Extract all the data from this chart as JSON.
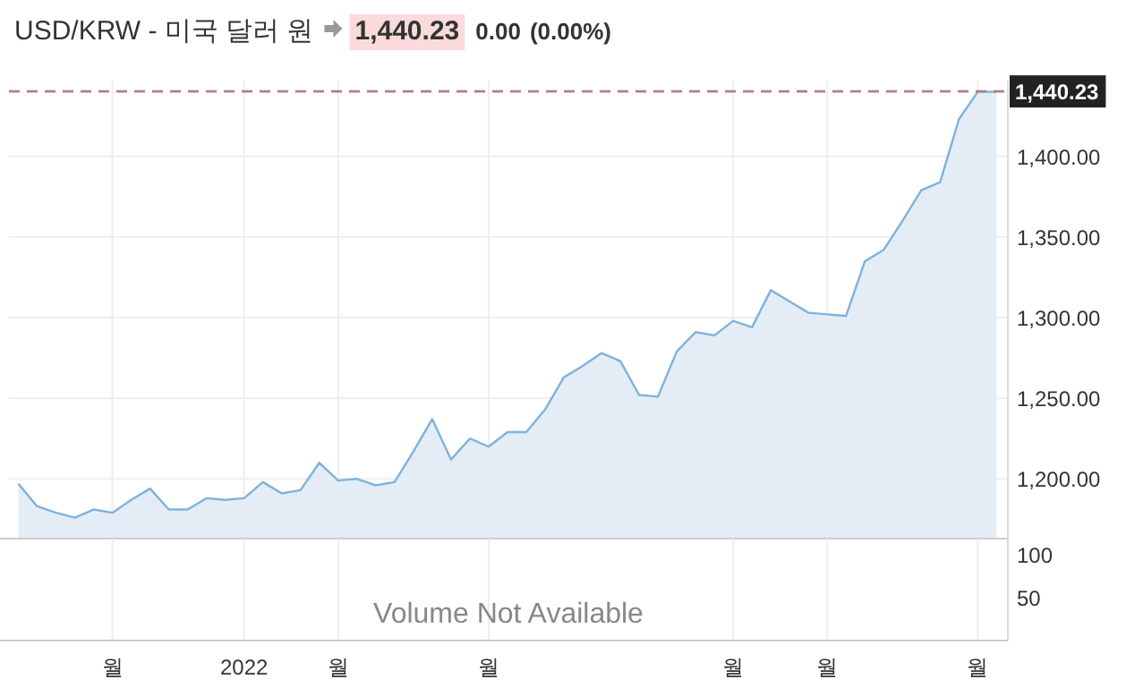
{
  "chart_data": [
    {
      "type": "area",
      "title": "USD/KRW - 미국 달러 원",
      "annotations": [
        "1,440.23",
        "0.00",
        "(0.00%)"
      ],
      "categories": [
        null,
        null,
        null,
        null,
        null,
        null,
        null,
        null,
        null,
        null,
        null,
        null,
        null,
        null,
        null,
        null,
        null,
        null,
        null,
        null,
        null,
        null,
        null,
        null,
        null,
        null,
        null,
        null,
        null,
        null,
        null,
        null,
        null,
        null,
        null,
        null,
        null,
        null,
        null,
        null,
        null,
        null,
        null,
        null,
        null,
        null,
        null,
        null,
        null,
        null,
        null,
        null,
        null
      ],
      "series": [
        {
          "color": "#7fb2dc",
          "values": [
            1197,
            1183,
            1179,
            1176,
            1181,
            1179,
            1187,
            1194,
            1181,
            1181,
            1188,
            1187,
            1188,
            1198,
            1191,
            1193,
            1210,
            1199,
            1200,
            1196,
            1198,
            1217,
            1237,
            1212,
            1225,
            1220,
            1229,
            1229,
            1243,
            1263,
            1270,
            1278,
            1273,
            1252,
            1251,
            1279,
            1291,
            1289,
            1298,
            1294,
            1317,
            1310,
            1303,
            1302,
            1301,
            1335,
            1342,
            1360,
            1379,
            1384,
            1423,
            1440,
            1440
          ]
        }
      ],
      "ylim": [
        1163,
        1447
      ],
      "yticks": [
        {
          "value": 1200,
          "label": "1,200.00"
        },
        {
          "value": 1250,
          "label": "1,250.00"
        },
        {
          "value": 1300,
          "label": "1,300.00"
        },
        {
          "value": 1350,
          "label": "1,350.00"
        },
        {
          "value": 1400,
          "label": "1,400.00"
        }
      ],
      "ref_lines": [
        {
          "axis": "y",
          "value": 1440.23,
          "label": "1,440.23",
          "color": "#b08080",
          "line_style": "dashed"
        }
      ],
      "grid": true,
      "tick_labels": "y"
    },
    {
      "type": "bar",
      "annotations": [
        "Volume Not Available"
      ],
      "categories": [
        null,
        null,
        null,
        null,
        null,
        "월",
        null,
        null,
        null,
        null,
        null,
        null,
        "2022",
        null,
        null,
        null,
        null,
        "월",
        null,
        null,
        null,
        null,
        null,
        null,
        null,
        "월",
        null,
        null,
        null,
        null,
        null,
        null,
        null,
        null,
        null,
        null,
        null,
        null,
        "월",
        null,
        null,
        null,
        null,
        "월",
        null,
        null,
        null,
        null,
        null,
        null,
        null,
        "월",
        null
      ],
      "ylim": [
        0,
        119
      ],
      "yticks": [
        50,
        100
      ],
      "grid": "x"
    }
  ]
}
